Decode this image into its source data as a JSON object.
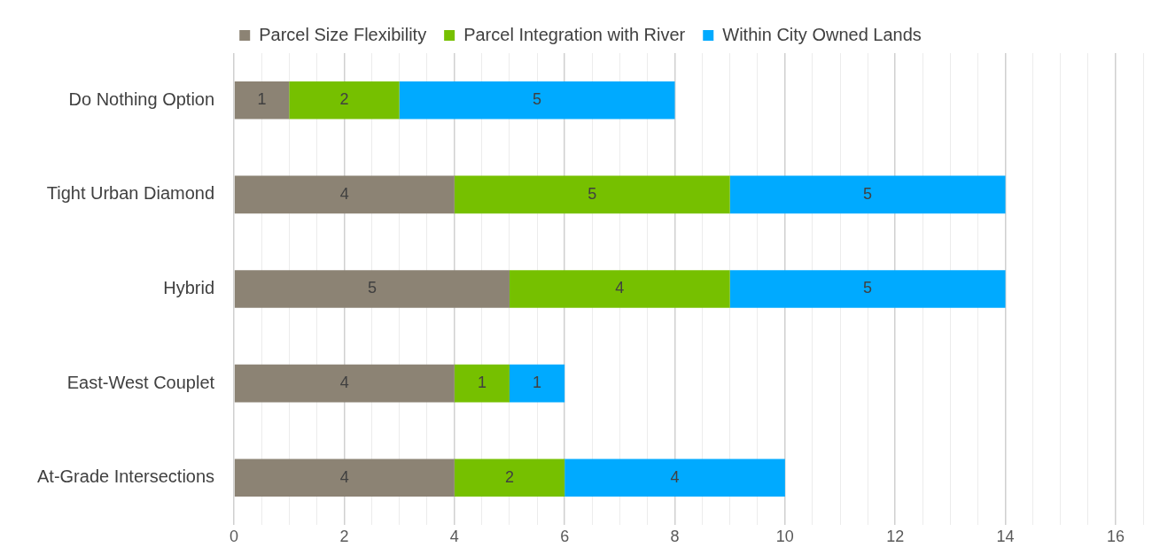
{
  "chart_data": {
    "type": "bar",
    "orientation": "horizontal",
    "stacked": true,
    "data_labels": true,
    "legend": "top",
    "grid": "x",
    "categories": [
      "Do Nothing Option",
      "Tight Urban Diamond",
      "Hybrid",
      "East-West Couplet",
      "At-Grade Intersections"
    ],
    "series": [
      {
        "name": "Parcel Size Flexibility",
        "color": "#8c8374",
        "values": [
          1,
          4,
          5,
          4,
          4
        ]
      },
      {
        "name": "Parcel Integration with River",
        "color": "#76c000",
        "values": [
          2,
          5,
          4,
          1,
          2
        ]
      },
      {
        "name": "Within City Owned Lands",
        "color": "#00aaff",
        "values": [
          5,
          5,
          5,
          1,
          4
        ]
      }
    ],
    "xlim": [
      0,
      16.5
    ],
    "xticks": [
      0,
      {
        "value": 0.5,
        "label": null
      },
      {
        "value": 1,
        "label": null
      },
      {
        "value": 1.5,
        "label": null
      },
      2,
      {
        "value": 2.5,
        "label": null
      },
      {
        "value": 3,
        "label": null
      },
      {
        "value": 3.5,
        "label": null
      },
      4,
      {
        "value": 4.5,
        "label": null
      },
      {
        "value": 5,
        "label": null
      },
      {
        "value": 5.5,
        "label": null
      },
      6,
      {
        "value": 6.5,
        "label": null
      },
      {
        "value": 7,
        "label": null
      },
      {
        "value": 7.5,
        "label": null
      },
      8,
      {
        "value": 8.5,
        "label": null
      },
      {
        "value": 9,
        "label": null
      },
      {
        "value": 9.5,
        "label": null
      },
      10,
      {
        "value": 10.5,
        "label": null
      },
      {
        "value": 11,
        "label": null
      },
      {
        "value": 11.5,
        "label": null
      },
      12,
      {
        "value": 12.5,
        "label": null
      },
      {
        "value": 13,
        "label": null
      },
      {
        "value": 13.5,
        "label": null
      },
      14,
      {
        "value": 14.5,
        "label": null
      },
      {
        "value": 15,
        "label": null
      },
      {
        "value": 15.5,
        "label": null
      },
      16,
      {
        "value": 16.5,
        "label": null
      }
    ]
  }
}
